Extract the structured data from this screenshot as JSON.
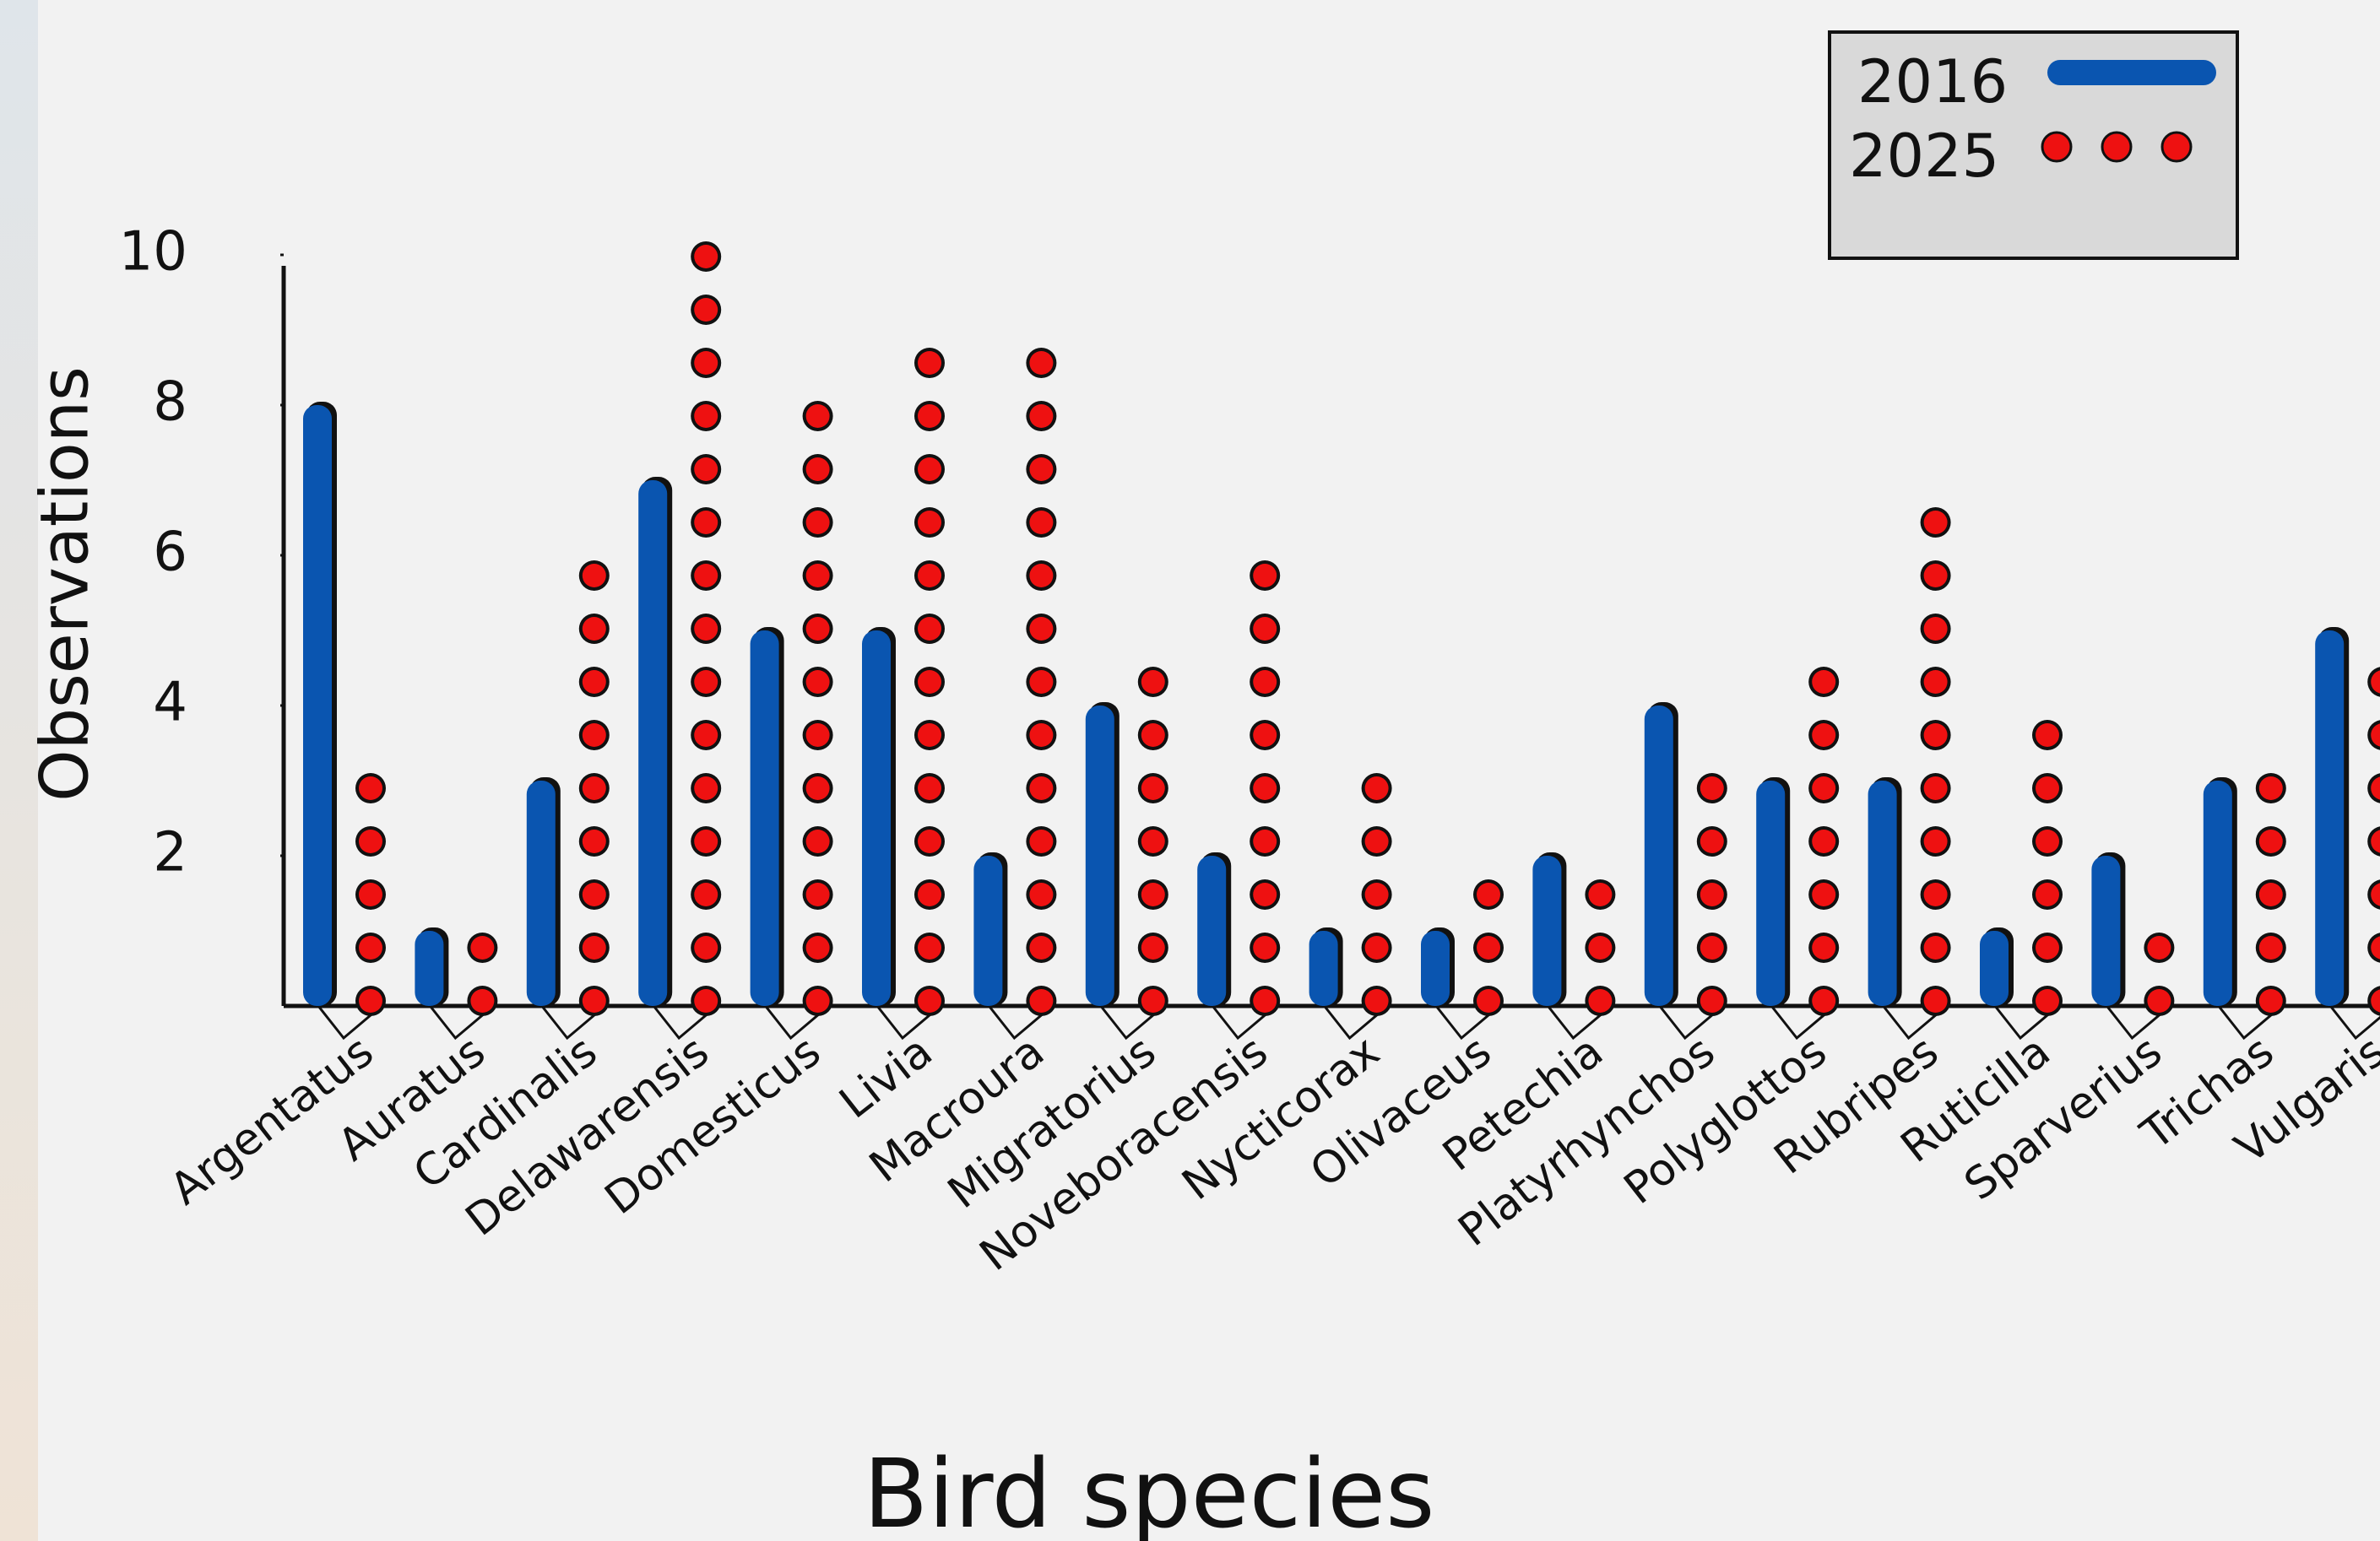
{
  "chart_data": {
    "type": "bar-dot",
    "x_label": "Bird species",
    "y_label": "Observations",
    "categories": [
      "Argentatus",
      "Auratus",
      "Cardinalis",
      "Delawarensis",
      "Domesticus",
      "Livia",
      "Macroura",
      "Migratorius",
      "Noveboracensis",
      "Nycticorax",
      "Olivaceus",
      "Petechia",
      "Platyrhynchos",
      "Polyglottos",
      "Rubripes",
      "Ruticilla",
      "Sparverius",
      "Trichas",
      "Vulgaris"
    ],
    "series": [
      {
        "name": "2016",
        "color": "#0a55b0",
        "values": [
          8,
          1,
          3,
          7,
          5,
          5,
          2,
          4,
          2,
          1,
          1,
          2,
          4,
          3,
          3,
          1,
          2,
          3,
          5
        ]
      },
      {
        "name": "2025",
        "color": "#ee1111",
        "values": [
          3,
          1,
          6,
          10,
          8,
          8.6,
          8.6,
          4.4,
          6,
          3,
          1.6,
          1.6,
          3,
          4.4,
          6.5,
          3.7,
          1,
          3,
          4.4
        ]
      }
    ],
    "ylim": [
      0,
      10
    ],
    "yticks": [
      2,
      4,
      6,
      8,
      10
    ],
    "legend": "top-right"
  }
}
